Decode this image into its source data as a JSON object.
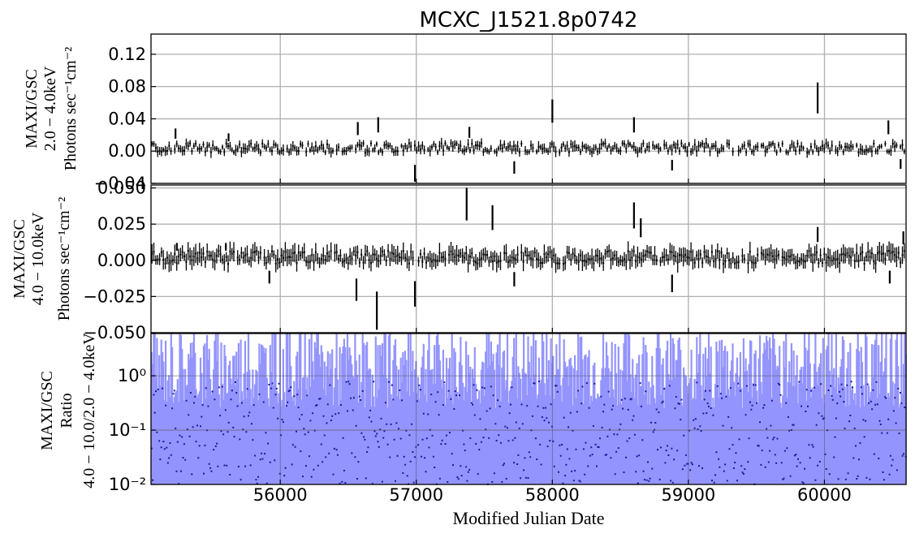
{
  "chart_data": {
    "type": "line",
    "title": "MCXC_J1521.8p0742",
    "xlabel": "Modified Julian Date",
    "xlim": [
      55050,
      60600
    ],
    "x_ticks": [
      "56000",
      "57000",
      "58000",
      "59000",
      "60000"
    ],
    "grid": true,
    "panels": [
      {
        "name": "soft",
        "ylabel_lines": [
          "MAXI/GSC",
          "2.0 − 4.0keV",
          "Photons sec⁻¹cm⁻²"
        ],
        "ylim": [
          -0.04,
          0.145
        ],
        "y_ticks": [
          "0.12",
          "0.08",
          "0.04",
          "0.00",
          "−0.04"
        ],
        "color": "#000000",
        "description": "binned light curve with error bars, mostly noise around 0.005",
        "spikes": [
          {
            "x": 55230,
            "y": 0.028
          },
          {
            "x": 55620,
            "y": 0.022
          },
          {
            "x": 56570,
            "y": 0.036
          },
          {
            "x": 56720,
            "y": 0.042
          },
          {
            "x": 56990,
            "y": -0.038
          },
          {
            "x": 57390,
            "y": 0.03
          },
          {
            "x": 57720,
            "y": -0.028
          },
          {
            "x": 58000,
            "y": 0.064
          },
          {
            "x": 58600,
            "y": 0.042
          },
          {
            "x": 58880,
            "y": -0.024
          },
          {
            "x": 59950,
            "y": 0.085
          },
          {
            "x": 60470,
            "y": 0.038
          },
          {
            "x": 60560,
            "y": -0.022
          }
        ]
      },
      {
        "name": "hard",
        "ylabel_lines": [
          "MAXI/GSC",
          "4.0 − 10.0keV",
          "Photons sec⁻¹cm⁻²"
        ],
        "ylim": [
          -0.05,
          0.052
        ],
        "y_ticks": [
          "0.050",
          "0.025",
          "0.000",
          "−0.025",
          "−0.050"
        ],
        "color": "#000000",
        "description": "binned light curve with error bars, noise around 0.002",
        "spikes": [
          {
            "x": 55240,
            "y": 0.012
          },
          {
            "x": 55600,
            "y": 0.012
          },
          {
            "x": 55920,
            "y": -0.016
          },
          {
            "x": 56560,
            "y": -0.028
          },
          {
            "x": 56710,
            "y": -0.048
          },
          {
            "x": 56990,
            "y": -0.032
          },
          {
            "x": 57370,
            "y": 0.05
          },
          {
            "x": 57560,
            "y": 0.038
          },
          {
            "x": 57720,
            "y": -0.018
          },
          {
            "x": 58600,
            "y": 0.04
          },
          {
            "x": 58650,
            "y": 0.029
          },
          {
            "x": 58880,
            "y": -0.022
          },
          {
            "x": 59950,
            "y": 0.023
          },
          {
            "x": 60480,
            "y": -0.016
          },
          {
            "x": 60580,
            "y": 0.02
          }
        ]
      },
      {
        "name": "ratio",
        "ylabel_lines": [
          "MAXI/GSC",
          "Ratio",
          "4.0 − 10.0/2.0 − 4.0keV"
        ],
        "scale": "log",
        "ylim": [
          0.01,
          6
        ],
        "y_ticks": [
          "10⁰",
          "10⁻¹",
          "10⁻²"
        ],
        "color": "#0000ff",
        "description": "hardness ratio with large semi-transparent error bars spanning roughly 0.01 to 5"
      }
    ]
  }
}
